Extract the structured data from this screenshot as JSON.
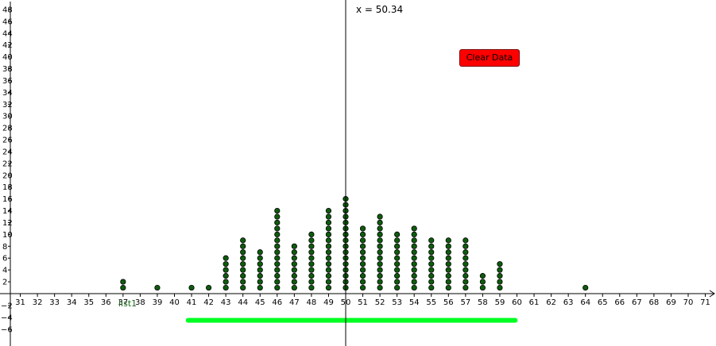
{
  "readout": {
    "x_label": "x = 50.34"
  },
  "clear_button": {
    "label": "Clear Data",
    "color": "#ff0000"
  },
  "list_label": "list1",
  "colors": {
    "dot_fill": "#0d5c0d",
    "dot_stroke": "#000000",
    "slider": "#00ff22",
    "axis": "#000000"
  },
  "chart_data": {
    "type": "scatter",
    "xlim": [
      30.5,
      71.5
    ],
    "ylim": [
      -7,
      49
    ],
    "x_ticks": [
      31,
      32,
      33,
      34,
      35,
      36,
      37,
      38,
      39,
      40,
      41,
      42,
      43,
      44,
      45,
      46,
      47,
      48,
      49,
      50,
      51,
      52,
      53,
      54,
      55,
      56,
      57,
      58,
      59,
      60,
      61,
      62,
      63,
      64,
      65,
      66,
      67,
      68,
      69,
      70,
      71
    ],
    "y_ticks": [
      -6,
      -4,
      -2,
      2,
      4,
      6,
      8,
      10,
      12,
      14,
      16,
      18,
      20,
      22,
      24,
      26,
      28,
      30,
      32,
      34,
      36,
      38,
      40,
      42,
      44,
      46,
      48
    ],
    "vertical_line_x": 50,
    "slider_range": [
      40.8,
      59.9
    ],
    "slider_y": -4.5,
    "dot_counts": [
      {
        "x": 37,
        "count": 2
      },
      {
        "x": 39,
        "count": 1
      },
      {
        "x": 41,
        "count": 1
      },
      {
        "x": 42,
        "count": 1
      },
      {
        "x": 43,
        "count": 6
      },
      {
        "x": 44,
        "count": 9
      },
      {
        "x": 45,
        "count": 7
      },
      {
        "x": 46,
        "count": 14
      },
      {
        "x": 47,
        "count": 8
      },
      {
        "x": 48,
        "count": 10
      },
      {
        "x": 49,
        "count": 14
      },
      {
        "x": 50,
        "count": 16
      },
      {
        "x": 51,
        "count": 11
      },
      {
        "x": 52,
        "count": 13
      },
      {
        "x": 53,
        "count": 10
      },
      {
        "x": 54,
        "count": 11
      },
      {
        "x": 55,
        "count": 9
      },
      {
        "x": 56,
        "count": 9
      },
      {
        "x": 57,
        "count": 9
      },
      {
        "x": 58,
        "count": 3
      },
      {
        "x": 59,
        "count": 5
      },
      {
        "x": 64,
        "count": 1
      }
    ]
  }
}
